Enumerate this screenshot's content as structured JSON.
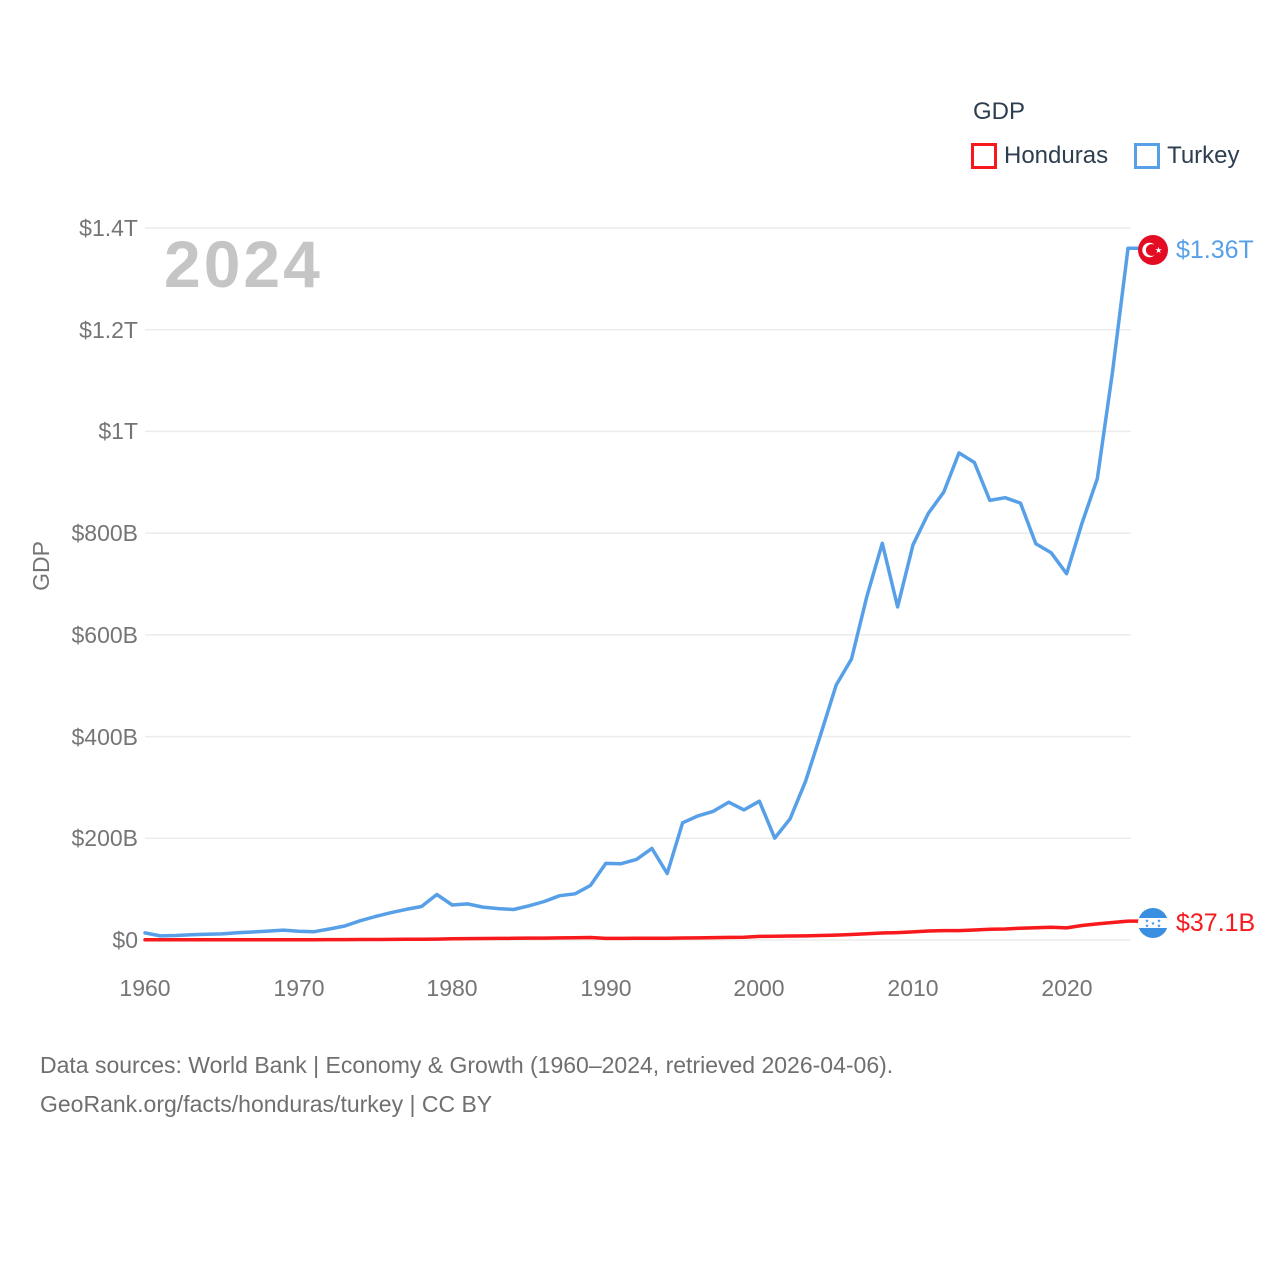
{
  "watermark_year": "2024",
  "legend": {
    "title": "GDP",
    "items": [
      {
        "label": "Honduras",
        "color": "#f7191c"
      },
      {
        "label": "Turkey",
        "color": "#57a0e8"
      }
    ]
  },
  "y_axis": {
    "title": "GDP",
    "ticks": [
      "$0",
      "$200B",
      "$400B",
      "$600B",
      "$800B",
      "$1T",
      "$1.2T",
      "$1.4T"
    ]
  },
  "x_axis": {
    "ticks": [
      "1960",
      "1970",
      "1980",
      "1990",
      "2000",
      "2010",
      "2020"
    ]
  },
  "end_labels": {
    "turkey_value": "$1.36T",
    "honduras_value": "$37.1B"
  },
  "footer": {
    "line1": "Data sources: World Bank | Economy & Growth (1960–2024, retrieved 2026-04-06).",
    "line2": "GeoRank.org/facts/honduras/turkey | CC BY"
  },
  "colors": {
    "grid": "#ececec",
    "tick_text": "#757575",
    "legend_text": "#2c3e50",
    "watermark": "#c5c5c5",
    "turkey_flag_red": "#e40c22",
    "honduras_flag_blue": "#3a8fe0"
  },
  "chart_data": {
    "type": "line",
    "title": "GDP",
    "xlabel": "",
    "ylabel": "GDP",
    "unit": "billions of current US$",
    "x_range": [
      1960,
      2024
    ],
    "ylim": [
      0,
      1400
    ],
    "grid": "horizontal",
    "legend_position": "top-right",
    "x": [
      1960,
      1961,
      1962,
      1963,
      1964,
      1965,
      1966,
      1967,
      1968,
      1969,
      1970,
      1971,
      1972,
      1973,
      1974,
      1975,
      1976,
      1977,
      1978,
      1979,
      1980,
      1981,
      1982,
      1983,
      1984,
      1985,
      1986,
      1987,
      1988,
      1989,
      1990,
      1991,
      1992,
      1993,
      1994,
      1995,
      1996,
      1997,
      1998,
      1999,
      2000,
      2001,
      2002,
      2003,
      2004,
      2005,
      2006,
      2007,
      2008,
      2009,
      2010,
      2011,
      2012,
      2013,
      2014,
      2015,
      2016,
      2017,
      2018,
      2019,
      2020,
      2021,
      2022,
      2023,
      2024
    ],
    "series": [
      {
        "name": "honduras",
        "label": "Honduras",
        "color": "#f7191c",
        "end_value_label": "$37.1B",
        "values": [
          0.34,
          0.36,
          0.39,
          0.41,
          0.44,
          0.49,
          0.52,
          0.56,
          0.6,
          0.62,
          0.65,
          0.68,
          0.72,
          0.82,
          0.91,
          0.96,
          1.11,
          1.33,
          1.53,
          1.77,
          2.57,
          2.8,
          2.9,
          3.08,
          3.31,
          3.64,
          3.81,
          4.11,
          4.53,
          4.93,
          3.05,
          3.07,
          3.42,
          3.5,
          3.43,
          3.91,
          4.07,
          4.66,
          5.2,
          5.37,
          7.1,
          7.57,
          7.77,
          8.14,
          8.77,
          9.67,
          10.84,
          12.28,
          13.79,
          14.59,
          15.84,
          17.73,
          18.53,
          18.5,
          19.76,
          20.98,
          21.72,
          23.14,
          24.07,
          25.1,
          23.83,
          28.49,
          31.72,
          34.4,
          37.1
        ]
      },
      {
        "name": "turkey",
        "label": "Turkey",
        "color": "#57a0e8",
        "end_value_label": "$1.36T",
        "values": [
          14.0,
          8.0,
          8.9,
          10.4,
          11.2,
          12.0,
          14.1,
          15.7,
          17.5,
          19.5,
          17.1,
          16.3,
          21.6,
          27.6,
          37.8,
          46.3,
          53.6,
          60.1,
          65.9,
          89.4,
          68.8,
          71.0,
          64.6,
          61.7,
          60.0,
          67.2,
          75.7,
          87.2,
          90.9,
          107.1,
          150.7,
          150.0,
          158.5,
          180.2,
          130.7,
          230.5,
          244.0,
          253.1,
          270.9,
          255.9,
          272.9,
          200.3,
          238.4,
          311.8,
          404.8,
          501.4,
          552.5,
          675.8,
          780.0,
          655.0,
          777.0,
          838.8,
          880.6,
          957.8,
          938.9,
          864.3,
          869.7,
          859.0,
          779.0,
          761.4,
          720.3,
          819.0,
          907.1,
          1118.3,
          1360.0
        ]
      }
    ]
  }
}
